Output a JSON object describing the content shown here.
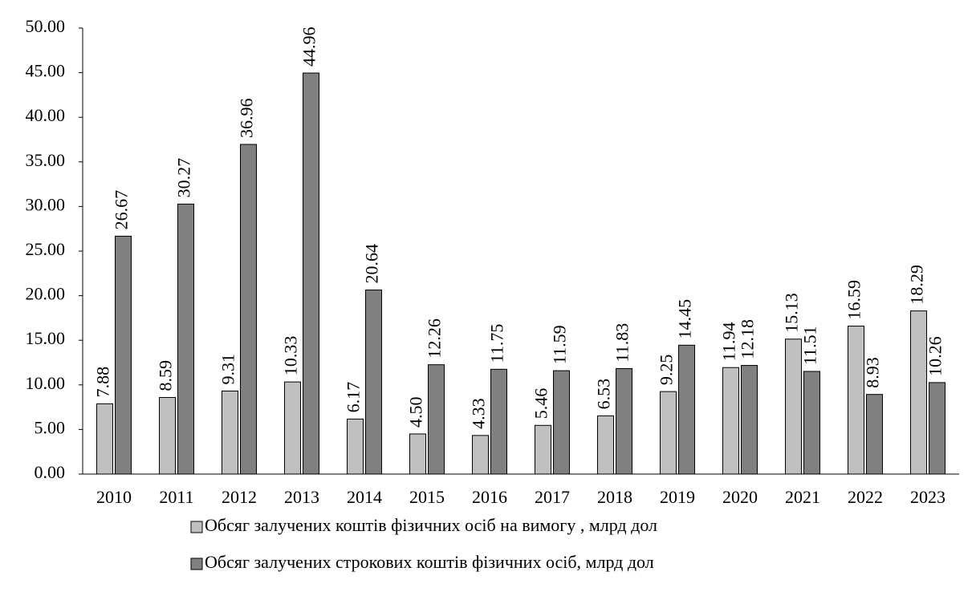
{
  "chart_data": {
    "type": "bar",
    "categories": [
      "2010",
      "2011",
      "2012",
      "2013",
      "2014",
      "2015",
      "2016",
      "2017",
      "2018",
      "2019",
      "2020",
      "2021",
      "2022",
      "2023"
    ],
    "series": [
      {
        "name": "Обсяг залучених коштів фізичних осіб на вимогу , млрд дол",
        "color": "#c0c0c0",
        "values": [
          7.88,
          8.59,
          9.31,
          10.33,
          6.17,
          4.5,
          4.33,
          5.46,
          6.53,
          9.25,
          11.94,
          15.13,
          16.59,
          18.29
        ],
        "value_labels": [
          "7.88",
          "8.59",
          "9.31",
          "10.33",
          "6.17",
          "4.50",
          "4.33",
          "5.46",
          "6.53",
          "9.25",
          "11.94",
          "15.13",
          "16.59",
          "18.29"
        ]
      },
      {
        "name": "Обсяг залучених строкових коштів фізичних осіб, млрд дол",
        "color": "#808080",
        "values": [
          26.67,
          30.27,
          36.96,
          44.96,
          20.64,
          12.26,
          11.75,
          11.59,
          11.83,
          14.45,
          12.18,
          11.51,
          8.93,
          10.26
        ],
        "value_labels": [
          "26.67",
          "30.27",
          "36.96",
          "44.96",
          "20.64",
          "12.26",
          "11.75",
          "11.59",
          "11.83",
          "14.45",
          "12.18",
          "11.51",
          "8.93",
          "10.26"
        ]
      }
    ],
    "ylim": [
      0,
      50
    ],
    "yticks": [
      {
        "value": 0,
        "label": "0.00"
      },
      {
        "value": 5,
        "label": "5.00"
      },
      {
        "value": 10,
        "label": "10.00"
      },
      {
        "value": 15,
        "label": "15.00"
      },
      {
        "value": 20,
        "label": "20.00"
      },
      {
        "value": 25,
        "label": "25.00"
      },
      {
        "value": 30,
        "label": "30.00"
      },
      {
        "value": 35,
        "label": "35.00"
      },
      {
        "value": 40,
        "label": "40.00"
      },
      {
        "value": 45,
        "label": "45.00"
      },
      {
        "value": 50,
        "label": "50.00"
      }
    ],
    "grid": false,
    "legend": "bottom"
  }
}
